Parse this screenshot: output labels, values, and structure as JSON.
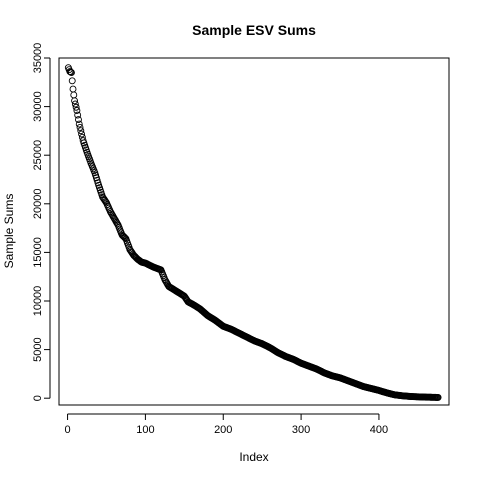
{
  "chart_data": {
    "type": "scatter",
    "title": "Sample ESV Sums",
    "xlabel": "Index",
    "ylabel": "Sample Sums",
    "xlim": [
      -11,
      490
    ],
    "ylim": [
      -700,
      35000
    ],
    "x_ticks": [
      0,
      100,
      200,
      300,
      400
    ],
    "y_ticks": [
      0,
      5000,
      10000,
      15000,
      20000,
      25000,
      30000,
      35000
    ],
    "grid": false,
    "point_count": 476,
    "curve_anchors": [
      [
        1,
        34000
      ],
      [
        3,
        33600
      ],
      [
        5,
        33500
      ],
      [
        7,
        31800
      ],
      [
        9,
        30600
      ],
      [
        12,
        29600
      ],
      [
        15,
        28200
      ],
      [
        20,
        26500
      ],
      [
        25,
        25300
      ],
      [
        30,
        24200
      ],
      [
        35,
        23200
      ],
      [
        40,
        21900
      ],
      [
        45,
        20700
      ],
      [
        50,
        20100
      ],
      [
        55,
        19200
      ],
      [
        60,
        18500
      ],
      [
        65,
        17800
      ],
      [
        70,
        16800
      ],
      [
        75,
        16400
      ],
      [
        80,
        15300
      ],
      [
        85,
        14700
      ],
      [
        90,
        14300
      ],
      [
        95,
        14000
      ],
      [
        100,
        13900
      ],
      [
        110,
        13500
      ],
      [
        120,
        13200
      ],
      [
        125,
        12200
      ],
      [
        130,
        11500
      ],
      [
        140,
        11000
      ],
      [
        150,
        10500
      ],
      [
        155,
        9900
      ],
      [
        160,
        9700
      ],
      [
        170,
        9200
      ],
      [
        180,
        8500
      ],
      [
        190,
        8000
      ],
      [
        200,
        7400
      ],
      [
        210,
        7100
      ],
      [
        220,
        6700
      ],
      [
        230,
        6300
      ],
      [
        240,
        5900
      ],
      [
        250,
        5600
      ],
      [
        260,
        5200
      ],
      [
        270,
        4700
      ],
      [
        280,
        4300
      ],
      [
        290,
        4000
      ],
      [
        300,
        3600
      ],
      [
        310,
        3300
      ],
      [
        320,
        3000
      ],
      [
        330,
        2600
      ],
      [
        340,
        2300
      ],
      [
        350,
        2100
      ],
      [
        360,
        1800
      ],
      [
        370,
        1500
      ],
      [
        380,
        1200
      ],
      [
        390,
        1000
      ],
      [
        400,
        800
      ],
      [
        410,
        550
      ],
      [
        420,
        350
      ],
      [
        430,
        250
      ],
      [
        440,
        180
      ],
      [
        450,
        140
      ],
      [
        460,
        110
      ],
      [
        470,
        90
      ],
      [
        476,
        80
      ]
    ]
  }
}
